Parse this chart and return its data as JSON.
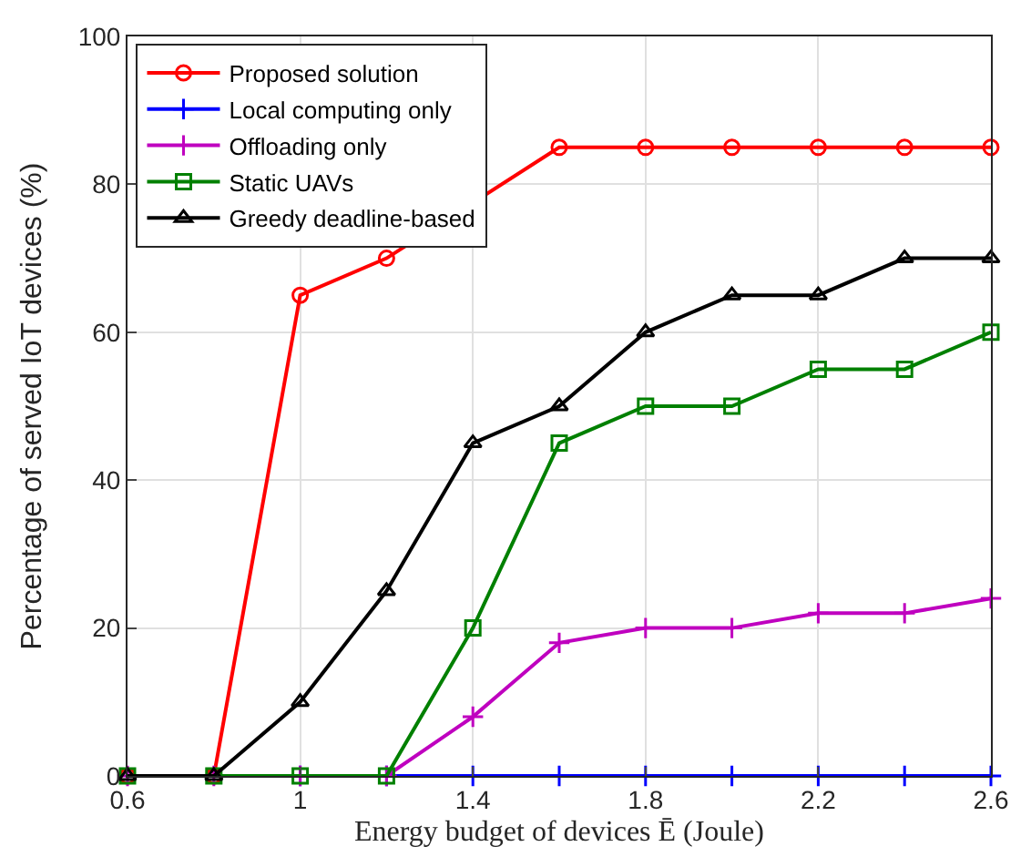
{
  "chart_data": {
    "type": "line",
    "xlabel": "Energy budget of devices Ē (Joule)",
    "ylabel": "Percentage of served IoT devices (%)",
    "x": [
      0.6,
      0.8,
      1.0,
      1.2,
      1.4,
      1.6,
      1.8,
      2.0,
      2.2,
      2.4,
      2.6
    ],
    "series": [
      {
        "name": "Proposed solution",
        "color": "#ff0000",
        "marker": "circle",
        "values": [
          0,
          0,
          65,
          70,
          null,
          85,
          85,
          85,
          85,
          85,
          85
        ]
      },
      {
        "name": "Local computing only",
        "color": "#0000ff",
        "marker": "cross",
        "values": [
          null,
          null,
          0,
          0,
          0,
          0,
          0,
          0,
          0,
          0,
          0
        ]
      },
      {
        "name": "Offloading only",
        "color": "#bf00bf",
        "marker": "cross",
        "values": [
          0,
          0,
          0,
          0,
          8,
          18,
          20,
          20,
          22,
          22,
          24
        ]
      },
      {
        "name": "Static UAVs",
        "color": "#008000",
        "marker": "square",
        "values": [
          0,
          0,
          0,
          0,
          20,
          45,
          50,
          50,
          55,
          55,
          60
        ]
      },
      {
        "name": "Greedy deadline-based",
        "color": "#000000",
        "marker": "triangle",
        "values": [
          0,
          0,
          10,
          25,
          45,
          50,
          60,
          65,
          65,
          70,
          70
        ]
      }
    ],
    "xlim": [
      0.6,
      2.6
    ],
    "xticks": [
      0.6,
      1,
      1.4,
      1.8,
      2.2,
      2.6
    ],
    "ylim": [
      0,
      100
    ],
    "yticks": [
      0,
      20,
      40,
      60,
      80,
      100
    ],
    "grid": true,
    "legend": "top left",
    "line_style": "solid"
  }
}
